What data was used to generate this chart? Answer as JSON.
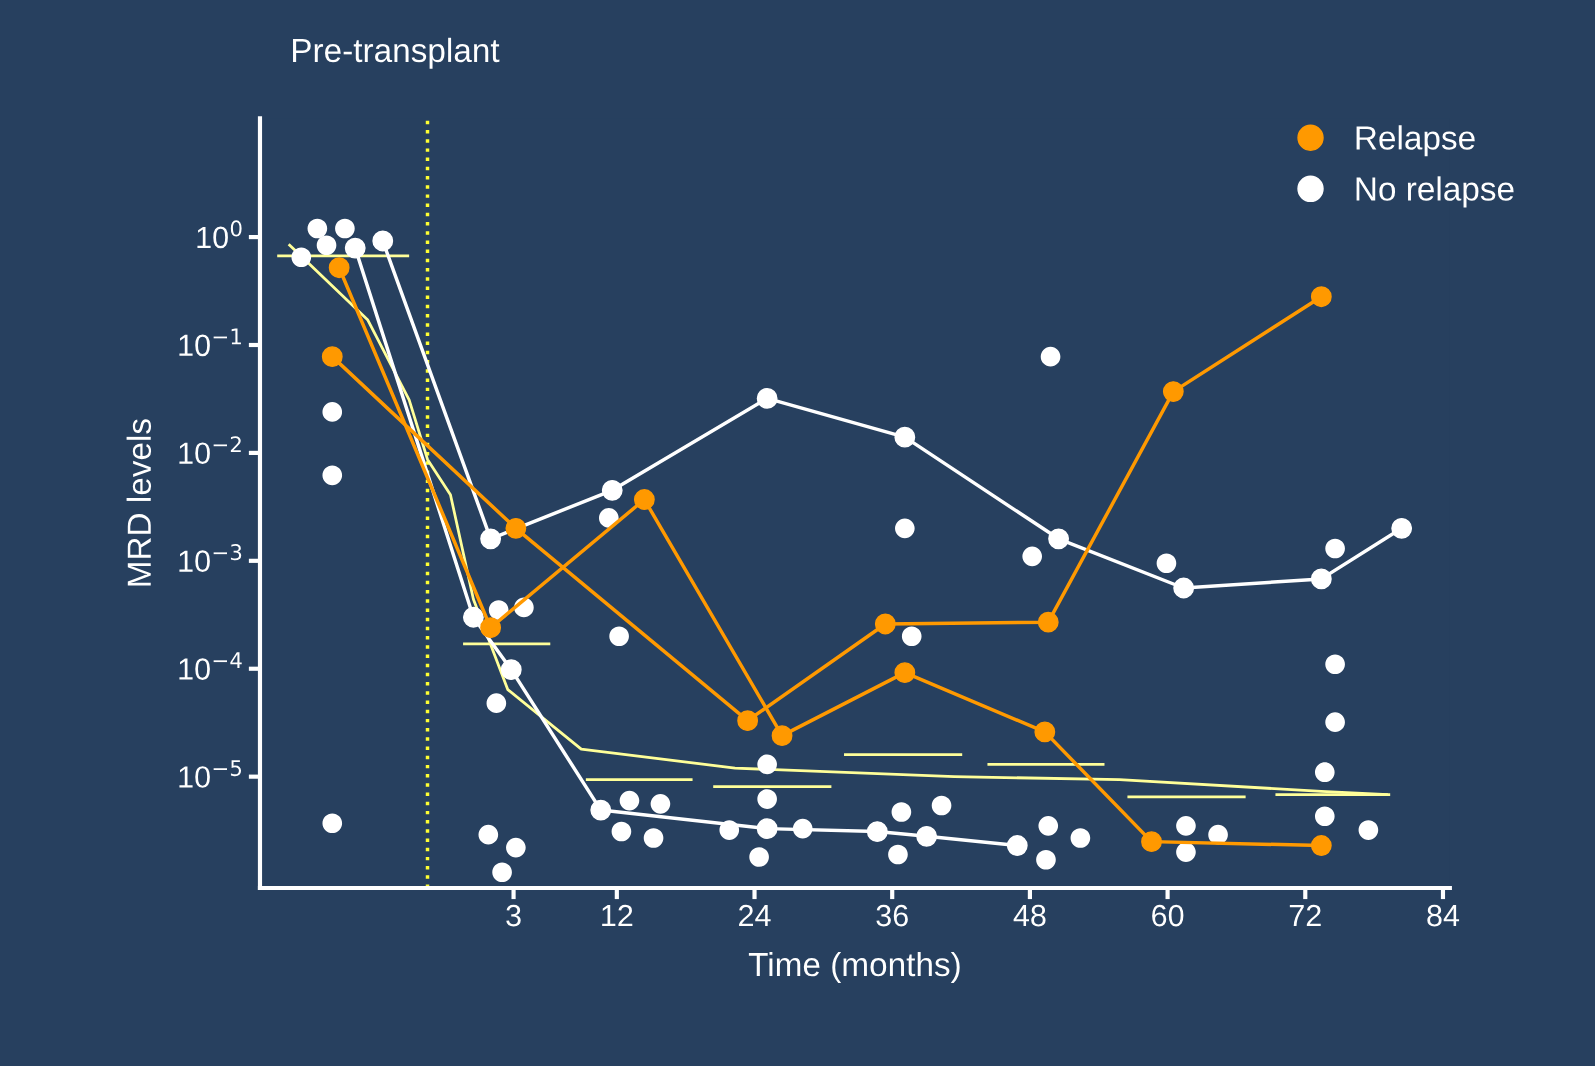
{
  "chart_data": {
    "type": "line",
    "xlabel": "Time (months)",
    "ylabel": "MRD levels",
    "annotations": [
      "Pre-transplant"
    ],
    "log": "y",
    "grid": false,
    "legend": "top right",
    "xlim": [
      -19.1,
      84.6
    ],
    "ylim": [
      9.3e-07,
      12.6
    ],
    "xticks": [
      3,
      12,
      24,
      36,
      48,
      60,
      72,
      84
    ],
    "yticks": [
      {
        "value": 1,
        "label": "10$^{0}$"
      },
      {
        "value": 0.1,
        "label": "10$^{−1}$"
      },
      {
        "value": 0.01,
        "label": "10$^{−2}$"
      },
      {
        "value": 0.001,
        "label": "10$^{−3}$"
      },
      {
        "value": 0.0001,
        "label": "10$^{−4}$"
      },
      {
        "value": 1e-05,
        "label": "10$^{−5}$"
      }
    ],
    "ref_lines": [
      {
        "axis": "x",
        "value": -4.5,
        "color": "#ffff33",
        "line_style": "dotted"
      }
    ],
    "series": [
      {
        "color": "#ffff99",
        "marker": "none",
        "x": [
          -16.6,
          -9.7,
          -6.1,
          -4.5,
          -2.5,
          -0.5,
          2.5,
          8.9,
          22.3,
          41.4,
          55.8,
          73.4,
          79.2
        ],
        "values": [
          0.86,
          0.17,
          0.031,
          0.0087,
          0.0041,
          0.00044,
          6.4e-05,
          1.8e-05,
          1.2e-05,
          1e-05,
          9.4e-06,
          7.3e-06,
          6.8e-06
        ]
      },
      {
        "color": "#ffff99",
        "marker": "none",
        "x": [
          -17.6,
          -6.1,
          -3.8,
          -1.4,
          6.2,
          7.5,
          9.3,
          18.6,
          19.2,
          20.4,
          30.7,
          31.2,
          31.8,
          42.1,
          43.2,
          44.3,
          54.5,
          55.2,
          56.5,
          66.8,
          68.4,
          69.4,
          79.4
        ],
        "values": [
          0.67,
          0.67,
          null,
          0.00017,
          0.00017,
          null,
          9.4e-06,
          9.4e-06,
          null,
          8.1e-06,
          8.1e-06,
          null,
          1.6e-05,
          1.6e-05,
          null,
          1.3e-05,
          1.3e-05,
          null,
          6.5e-06,
          6.5e-06,
          null,
          6.8e-06,
          6.8e-06
        ]
      },
      {
        "type": "scatter",
        "name": "No relapse",
        "color": "#ffffff",
        "marker": "circle",
        "x": [
          -14.1,
          -11.7,
          -13.3,
          -15.5,
          -12.8,
          -12.8,
          -12.8,
          1.7,
          3.9,
          1.5,
          0.8,
          3.2,
          2.0,
          11.3,
          12.2,
          13.1,
          15.8,
          12.4,
          15.2,
          25.1,
          25.1,
          21.8,
          28.2,
          24.4,
          37.1,
          37.7,
          36.8,
          40.3,
          36.5,
          49.8,
          48.2,
          49.6,
          52.4,
          49.4,
          59.9,
          61.6,
          64.4,
          61.6,
          74.6,
          74.6,
          74.6,
          73.7,
          73.7,
          77.5
        ],
        "values": [
          1.2,
          1.2,
          0.84,
          0.65,
          0.024,
          0.0062,
          3.7e-06,
          0.00035,
          0.00037,
          4.8e-05,
          2.9e-06,
          2.2e-06,
          1.3e-06,
          0.0025,
          0.0002,
          6e-06,
          5.6e-06,
          3.1e-06,
          2.7e-06,
          1.3e-05,
          6.2e-06,
          3.2e-06,
          3.3e-06,
          1.8e-06,
          0.002,
          0.0002,
          4.7e-06,
          5.4e-06,
          1.9e-06,
          0.078,
          0.0011,
          3.5e-06,
          2.7e-06,
          1.7e-06,
          0.00095,
          3.5e-06,
          2.9e-06,
          2e-06,
          0.0013,
          0.00011,
          3.2e-05,
          1.1e-05,
          4.3e-06,
          3.2e-06
        ]
      },
      {
        "color": "#ffffff",
        "marker": "circle",
        "x": [
          -10.8,
          -0.5,
          2.8,
          10.6,
          25.1,
          34.7,
          39.0,
          46.9
        ],
        "values": [
          0.79,
          0.0003,
          9.8e-05,
          4.9e-06,
          3.3e-06,
          3.1e-06,
          2.8e-06,
          2.3e-06
        ]
      },
      {
        "color": "#ffffff",
        "marker": "circle",
        "x": [
          -8.4,
          1.0,
          11.6,
          25.1,
          37.1,
          50.5,
          61.4,
          73.4,
          80.4
        ],
        "values": [
          0.92,
          0.0016,
          0.0045,
          0.032,
          0.014,
          0.0016,
          0.00056,
          0.00068,
          0.002
        ]
      },
      {
        "name": "Relapse",
        "color": "#ff9900",
        "marker": "circle",
        "x": [
          -12.2,
          1.0,
          14.4,
          26.4,
          37.1,
          49.3,
          58.6,
          73.4
        ],
        "values": [
          0.52,
          0.00024,
          0.0037,
          2.4e-05,
          9.2e-05,
          2.6e-05,
          2.5e-06,
          2.3e-06
        ]
      },
      {
        "color": "#ff9900",
        "marker": "circle",
        "x": [
          -12.8,
          3.2,
          23.4,
          35.4,
          49.6,
          60.5,
          73.4
        ],
        "values": [
          0.078,
          0.002,
          3.3e-05,
          0.00026,
          0.00027,
          0.037,
          0.28
        ]
      }
    ]
  }
}
